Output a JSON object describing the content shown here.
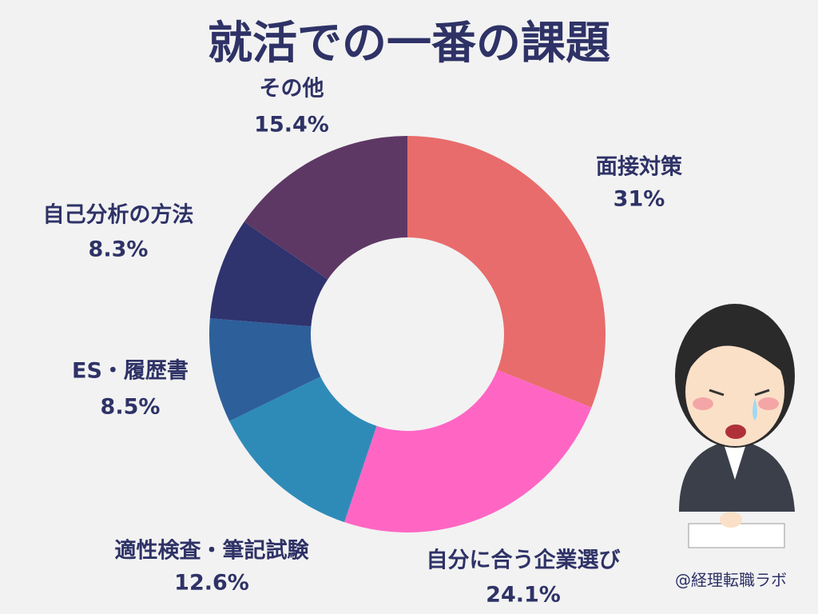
{
  "chart_data": {
    "type": "donut",
    "title": "就活での一番の課題",
    "categories": [
      "面接対策",
      "自分に合う企業選び",
      "適性検査・筆記試験",
      "ES・履歴書",
      "自己分析の方法",
      "その他"
    ],
    "values": [
      31,
      24.1,
      12.6,
      8.5,
      8.3,
      15.4
    ],
    "value_labels": [
      "31%",
      "24.1%",
      "12.6%",
      "8.5%",
      "8.3%",
      "15.4%"
    ],
    "colors": [
      "#e86c6c",
      "#ff66c4",
      "#2e8bb8",
      "#2d5f9a",
      "#2f336e",
      "#5e3865"
    ],
    "credit": "@経理転職ラボ"
  }
}
